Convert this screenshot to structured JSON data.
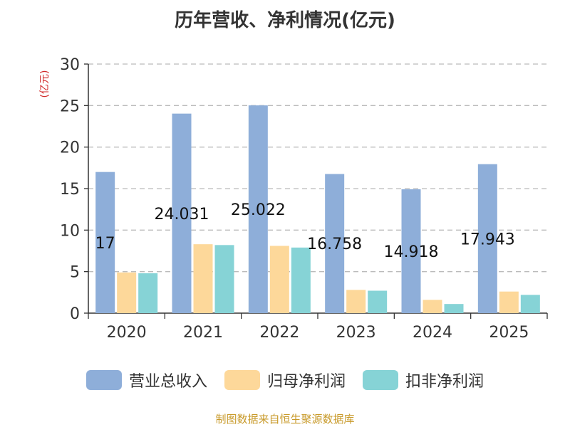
{
  "title": "历年营收、净利情况(亿元)",
  "source": "制图数据来自恒生聚源数据库",
  "colors": {
    "revenue": "#8eaed9",
    "net_profit": "#fdd89a",
    "deducted_profit": "#86d3d6",
    "grid": "#bbbbbb",
    "axis": "#333333",
    "ylabel": "#d12a2a"
  },
  "chart_data": {
    "type": "bar",
    "title": "历年营收、净利情况(亿元)",
    "xlabel": "",
    "ylabel": "(亿元)",
    "ylim": [
      0,
      30
    ],
    "yticks": [
      0,
      5,
      10,
      15,
      20,
      25,
      30
    ],
    "grid": true,
    "legend_position": "bottom",
    "categories": [
      "2020",
      "2021",
      "2022",
      "2023",
      "2024",
      "2025"
    ],
    "series": [
      {
        "name": "营业总收入",
        "values": [
          17,
          24.031,
          25.022,
          16.758,
          14.918,
          17.943
        ]
      },
      {
        "name": "归母净利润",
        "values": [
          4.9,
          8.3,
          8.1,
          2.8,
          1.6,
          2.6
        ]
      },
      {
        "name": "扣非净利润",
        "values": [
          4.8,
          8.2,
          7.9,
          2.7,
          1.1,
          2.2
        ]
      }
    ],
    "data_labels": [
      "17",
      "24.031",
      "25.022",
      "16.758",
      "14.918",
      "17.943"
    ]
  }
}
